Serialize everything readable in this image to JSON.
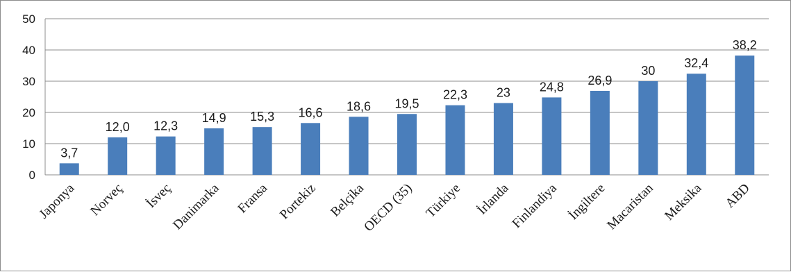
{
  "chart_data": {
    "type": "bar",
    "title": "",
    "xlabel": "",
    "ylabel": "",
    "ylim": [
      0,
      50
    ],
    "yticks": [
      0,
      10,
      20,
      30,
      40,
      50
    ],
    "grid": true,
    "legend": "none",
    "bar_color": "#4a7ebb",
    "categories": [
      "Japonya",
      "Norveç",
      "İsveç",
      "Danimarka",
      "Fransa",
      "Portekiz",
      "Belçika",
      "OECD (35)",
      "Türkiye",
      "İrlanda",
      "Finlandiya",
      "İngiltere",
      "Macaristan",
      "Meksika",
      "ABD"
    ],
    "values": [
      3.7,
      12.0,
      12.3,
      14.9,
      15.3,
      16.6,
      18.6,
      19.5,
      22.3,
      23,
      24.8,
      26.9,
      30,
      32.4,
      38.2
    ],
    "data_labels": [
      "3,7",
      "12,0",
      "12,3",
      "14,9",
      "15,3",
      "16,6",
      "18,6",
      "19,5",
      "22,3",
      "23",
      "24,8",
      "26,9",
      "30",
      "32,4",
      "38,2"
    ]
  }
}
